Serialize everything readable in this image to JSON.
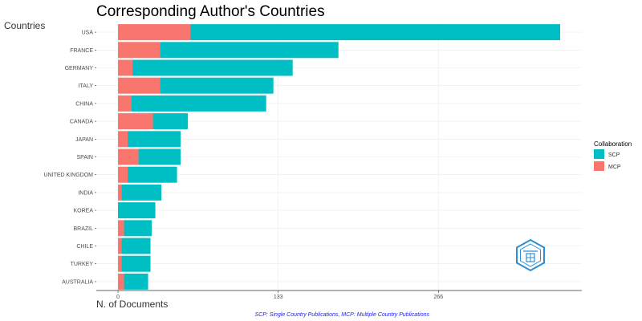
{
  "chart_data": {
    "type": "bar",
    "orientation": "horizontal",
    "stacked": true,
    "title": "Corresponding Author's Countries",
    "xlabel": "N. of Documents",
    "ylabel": "Countries",
    "categories": [
      "USA",
      "FRANCE",
      "GERMANY",
      "ITALY",
      "CHINA",
      "CANADA",
      "JAPAN",
      "SPAIN",
      "UNITED KINGDOM",
      "INDIA",
      "KOREA",
      "BRAZIL",
      "CHILE",
      "TURKEY",
      "AUSTRALIA"
    ],
    "series": [
      {
        "name": "MCP",
        "color": "#F8766D",
        "values": [
          60,
          35,
          12,
          35,
          11,
          29,
          8,
          17,
          8,
          3,
          0,
          5,
          3,
          3,
          5
        ]
      },
      {
        "name": "SCP",
        "color": "#00BFC4",
        "values": [
          307,
          148,
          133,
          94,
          112,
          29,
          44,
          35,
          41,
          33,
          31,
          23,
          24,
          24,
          20
        ]
      }
    ],
    "xticks": [
      0,
      133,
      266
    ],
    "xtick_labels": [
      "0",
      "133",
      "266"
    ],
    "xlim": [
      -18,
      385
    ],
    "legend": {
      "title": "Collaboration",
      "position": "right",
      "order": [
        "SCP",
        "MCP"
      ]
    },
    "caption": "SCP: Single Country Publications, MCP: Multiple Country Publications",
    "grid": true
  },
  "logo": {
    "name": "journal-logo-icon"
  }
}
